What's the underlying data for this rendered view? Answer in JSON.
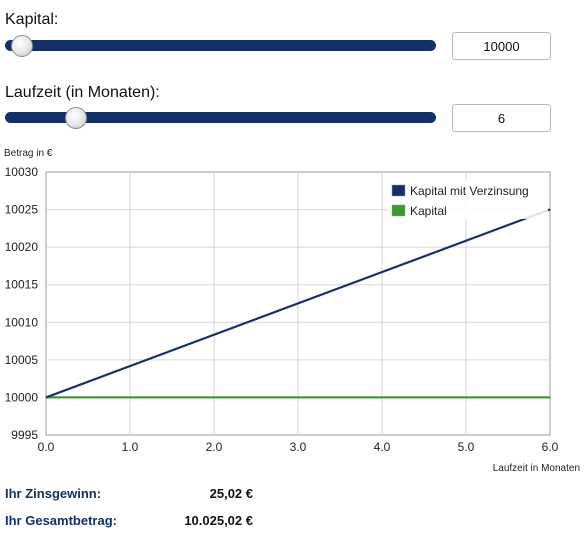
{
  "kapital": {
    "label": "Kapital:",
    "value": "10000",
    "slider_fraction": 0.04
  },
  "laufzeit": {
    "label": "Laufzeit (in Monaten):",
    "value": "6",
    "slider_fraction": 0.165
  },
  "results": {
    "zinsgewinn_label": "Ihr Zinsgewinn:",
    "zinsgewinn_value": "25,02 €",
    "gesamtbetrag_label": "Ihr Gesamtbetrag:",
    "gesamtbetrag_value": "10.025,02 €"
  },
  "colors": {
    "accent": "#14306b",
    "kapital_line": "#3a9a2a",
    "zins_line": "#14306b"
  },
  "chart_data": {
    "type": "line",
    "ylabel": "Betrag in €",
    "xlabel": "Laufzeit in Monaten",
    "xlim": [
      0,
      6
    ],
    "ylim": [
      9995,
      10030
    ],
    "x_ticks": [
      "0.0",
      "1.0",
      "2.0",
      "3.0",
      "4.0",
      "5.0",
      "6.0"
    ],
    "y_ticks": [
      "9995",
      "10000",
      "10005",
      "10010",
      "10015",
      "10020",
      "10025",
      "10030"
    ],
    "grid": true,
    "legend_position": "top-right",
    "series": [
      {
        "name": "Kapital mit Verzinsung",
        "color": "#14306b",
        "x": [
          0,
          6
        ],
        "y": [
          10000,
          10025.02
        ]
      },
      {
        "name": "Kapital",
        "color": "#3a9a2a",
        "x": [
          0,
          6
        ],
        "y": [
          10000,
          10000
        ]
      }
    ]
  }
}
